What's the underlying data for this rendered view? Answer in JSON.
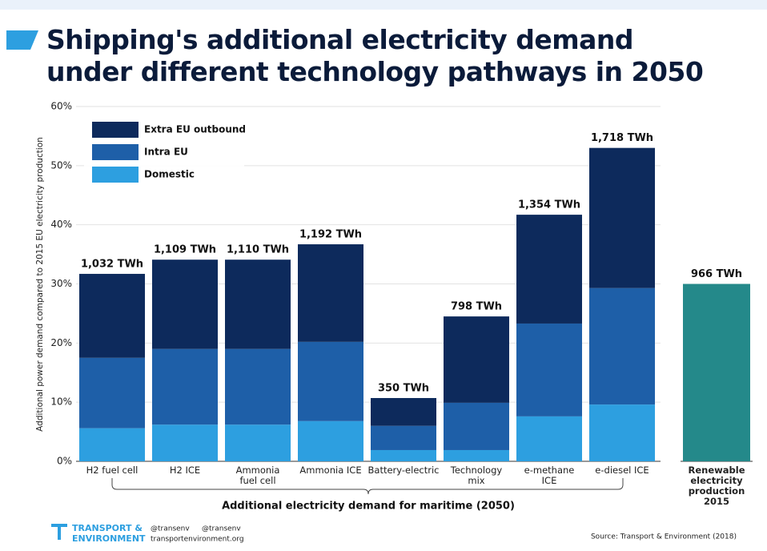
{
  "chart_data": {
    "type": "stacked_bar",
    "title": "Shipping's additional electricity demand\nunder different technology pathways in 2050",
    "y_axis_label": "Additional power demand compared to 2015 EU electricity production",
    "x_axis_label": "Additional electricity demand for maritime (2050)",
    "categories": [
      "H2 fuel cell",
      "H2 ICE",
      "Ammonia\nfuel cell",
      "Ammonia ICE",
      "Battery-electric",
      "Technology\nmix",
      "e-methane\nICE",
      "e-diesel ICE"
    ],
    "series": [
      {
        "name": "Domestic",
        "color": "#2d9fe0",
        "values": [
          5.6,
          6.2,
          6.2,
          6.8,
          1.9,
          1.9,
          7.6,
          9.6
        ]
      },
      {
        "name": "Intra EU",
        "color": "#1e5fa8",
        "values": [
          11.9,
          12.8,
          12.8,
          13.4,
          4.1,
          8.0,
          15.7,
          19.7
        ]
      },
      {
        "name": "Extra EU outbound",
        "color": "#0d2a5c",
        "values": [
          14.2,
          15.1,
          15.1,
          16.5,
          4.7,
          14.6,
          18.4,
          23.7
        ]
      }
    ],
    "total_labels": [
      "1,032 TWh",
      "1,109 TWh",
      "1,110 TWh",
      "1,192 TWh",
      "350 TWh",
      "798 TWh",
      "1,354 TWh",
      "1,718 TWh"
    ],
    "renewable": {
      "category": "Renewable\nelectricity\nproduction\n2015",
      "value": 30,
      "value_label": "966 TWh",
      "color": "#24898a"
    },
    "ylim": [
      0,
      60
    ],
    "yticks": [
      {
        "value": 0,
        "label": "0%"
      },
      {
        "value": 10,
        "label": "10%"
      },
      {
        "value": 20,
        "label": "20%"
      },
      {
        "value": 30,
        "label": "30%"
      },
      {
        "value": 40,
        "label": "40%"
      },
      {
        "value": 50,
        "label": "50%"
      },
      {
        "value": 60,
        "label": "60%"
      }
    ],
    "grid": true,
    "legend_position": "upper left",
    "source": "Source: Transport & Environment (2018)",
    "logo": {
      "line1": "TRANSPORT &",
      "line2": "ENVIRONMENT",
      "twitter": "@transenv",
      "facebook": "@transenv",
      "website": "transportenvironment.org"
    }
  }
}
